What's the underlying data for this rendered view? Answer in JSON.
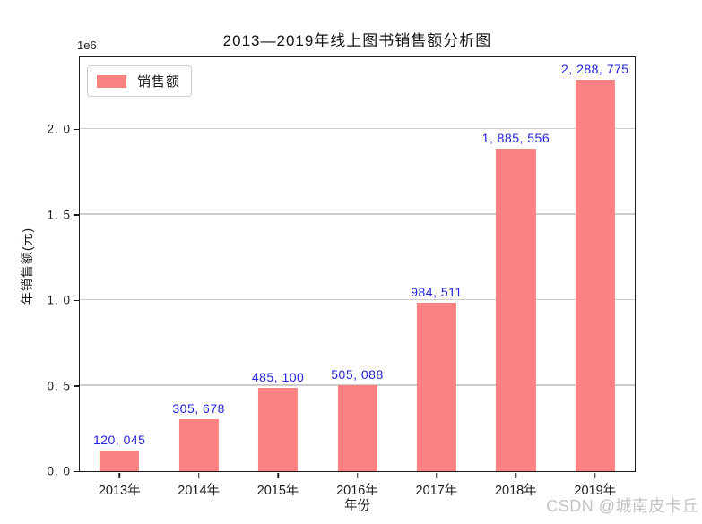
{
  "chart_data": {
    "type": "bar",
    "title": "2013—2019年线上图书销售额分析图",
    "xlabel": "年份",
    "ylabel": "年销售额(元)",
    "offset_text": "1e6",
    "categories": [
      "2013年",
      "2014年",
      "2015年",
      "2016年",
      "2017年",
      "2018年",
      "2019年"
    ],
    "values": [
      120045,
      305678,
      485100,
      505088,
      984511,
      1885556,
      2288775
    ],
    "bar_labels": [
      "120, 045",
      "305, 678",
      "485, 100",
      "505, 088",
      "984, 511",
      "1, 885, 556",
      "2, 288, 775"
    ],
    "series_name": "销售额",
    "legend": [
      {
        "label": "销售额",
        "color": "#fc8181"
      }
    ],
    "legend_position": "upper left",
    "ylim": [
      0,
      2420000
    ],
    "yticks": [
      0,
      500000,
      1000000,
      1500000,
      2000000
    ],
    "ytick_labels": [
      "0. 0",
      "0. 5",
      "1. 0",
      "1. 5",
      "2. 0"
    ],
    "grid": "horizontal",
    "bar_color": "#fc8181",
    "bar_width_fraction": 0.5,
    "label_color": "#2222dd",
    "grid_color": "#cccccc"
  },
  "watermark": {
    "text": "CSDN @城南皮卡丘"
  }
}
